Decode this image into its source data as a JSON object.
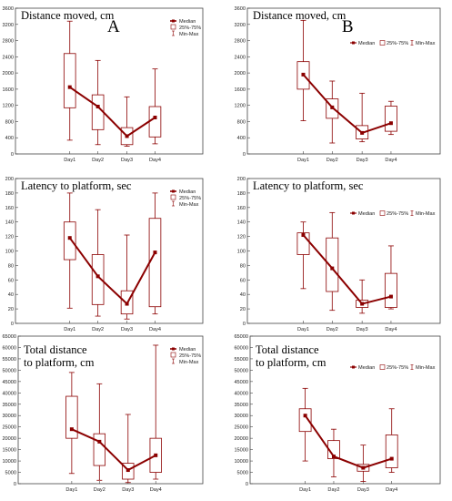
{
  "chart_data": [
    {
      "type": "box",
      "panel_label": "A",
      "title": "Distance moved, cm",
      "categories": [
        "Day1",
        "Day2",
        "Day3",
        "Day4"
      ],
      "ylim": [
        0,
        3600
      ],
      "yticks": [
        0,
        400,
        800,
        1200,
        1600,
        2000,
        2400,
        2800,
        3200,
        3600
      ],
      "median": [
        1650,
        1170,
        440,
        900
      ],
      "q25": [
        1140,
        600,
        230,
        420
      ],
      "q75": [
        2480,
        1460,
        650,
        1170
      ],
      "min": [
        340,
        230,
        190,
        250
      ],
      "max": [
        3280,
        2310,
        1410,
        2100
      ],
      "legend": [
        "Median",
        "25%-75%",
        "Min-Max"
      ],
      "legend_layout": "vertical"
    },
    {
      "type": "box",
      "panel_label": "B",
      "title": "Distance moved, cm",
      "categories": [
        "Day1",
        "Day2",
        "Day3",
        "Day4"
      ],
      "ylim": [
        0,
        3600
      ],
      "yticks": [
        0,
        400,
        800,
        1200,
        1600,
        2000,
        2400,
        2800,
        3200,
        3600
      ],
      "median": [
        1960,
        1150,
        520,
        760
      ],
      "q25": [
        1600,
        880,
        370,
        560
      ],
      "q75": [
        2280,
        1360,
        700,
        1180
      ],
      "min": [
        820,
        270,
        300,
        480
      ],
      "max": [
        3300,
        1800,
        1500,
        1300
      ],
      "legend": [
        "Median",
        "25%-75%",
        "Min-Max"
      ],
      "legend_layout": "horizontal"
    },
    {
      "type": "box",
      "panel_label": "",
      "title": "Latency to platform, sec",
      "categories": [
        "Day1",
        "Day2",
        "Day3",
        "Day4"
      ],
      "ylim": [
        0,
        200
      ],
      "yticks": [
        0,
        20,
        40,
        60,
        80,
        100,
        120,
        140,
        160,
        180,
        200
      ],
      "median": [
        118,
        65,
        27,
        98
      ],
      "q25": [
        88,
        26,
        13,
        23
      ],
      "q75": [
        140,
        95,
        45,
        145
      ],
      "min": [
        21,
        10,
        6,
        13
      ],
      "max": [
        180,
        157,
        122,
        180
      ],
      "legend": [
        "Median",
        "25%-75%",
        "Min-Max"
      ],
      "legend_layout": "vertical"
    },
    {
      "type": "box",
      "panel_label": "",
      "title": "Latency to platform, sec",
      "categories": [
        "Day1",
        "Day2",
        "Day3",
        "Day4"
      ],
      "ylim": [
        0,
        200
      ],
      "yticks": [
        0,
        20,
        40,
        60,
        80,
        100,
        120,
        140,
        160,
        180,
        200
      ],
      "median": [
        122,
        76,
        27,
        37
      ],
      "q25": [
        95,
        44,
        22,
        22
      ],
      "q75": [
        125,
        118,
        32,
        69
      ],
      "min": [
        48,
        18,
        14,
        20
      ],
      "max": [
        140,
        153,
        60,
        107
      ],
      "legend": [
        "Median",
        "25%-75%",
        "Min-Max"
      ],
      "legend_layout": "horizontal"
    },
    {
      "type": "box",
      "panel_label": "",
      "title": [
        "Total distance",
        "to platform, cm"
      ],
      "categories": [
        "Day1",
        "Day2",
        "Day3",
        "Day4"
      ],
      "ylim": [
        0,
        65000
      ],
      "yticks": [
        0,
        5000,
        10000,
        15000,
        20000,
        25000,
        30000,
        35000,
        40000,
        45000,
        50000,
        55000,
        60000,
        65000
      ],
      "median": [
        24000,
        18500,
        6000,
        12500
      ],
      "q25": [
        20000,
        8000,
        2000,
        5000
      ],
      "q75": [
        38500,
        22000,
        9000,
        20000
      ],
      "min": [
        4500,
        1500,
        500,
        2000
      ],
      "max": [
        49000,
        44000,
        30500,
        61000
      ],
      "legend": [
        "Median",
        "25%-75%",
        "Min-Max"
      ],
      "legend_layout": "vertical"
    },
    {
      "type": "box",
      "panel_label": "",
      "title": [
        "Total distance",
        "to platform, cm"
      ],
      "categories": [
        "Day1",
        "Day2",
        "Day3",
        "Day4"
      ],
      "ylim": [
        0,
        65000
      ],
      "yticks": [
        0,
        5000,
        10000,
        15000,
        20000,
        25000,
        30000,
        35000,
        40000,
        45000,
        50000,
        55000,
        60000,
        65000
      ],
      "median": [
        30000,
        12000,
        7000,
        11000
      ],
      "q25": [
        23000,
        11000,
        5500,
        7000
      ],
      "q75": [
        33000,
        19000,
        8500,
        21500
      ],
      "min": [
        10000,
        3000,
        1000,
        5000
      ],
      "max": [
        42000,
        24000,
        17000,
        33000
      ],
      "legend": [
        "Median",
        "25%-75%",
        "Min-Max"
      ],
      "legend_layout": "horizontal"
    }
  ],
  "colors": {
    "series": "#8b0000",
    "axis": "#444444"
  }
}
